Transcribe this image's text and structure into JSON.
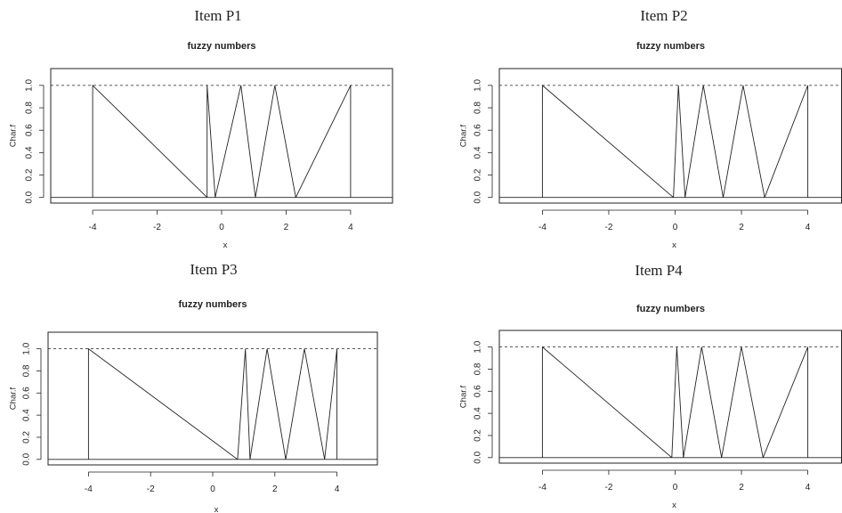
{
  "chart_data": [
    {
      "type": "line",
      "heading": "Item P1",
      "title": "fuzzy numbers",
      "xlabel": "x",
      "ylabel": "Char.f",
      "xlim": [
        -5.3,
        5.3
      ],
      "ylim": [
        -0.05,
        1.15
      ],
      "xticks": [
        -4,
        -2,
        0,
        2,
        4
      ],
      "yticks": [
        0.0,
        0.2,
        0.4,
        0.6,
        0.8,
        1.0
      ],
      "reference_lines": [
        {
          "y": 1.0,
          "style": "dashed"
        },
        {
          "y": 0.0,
          "style": "solid"
        }
      ],
      "series": [
        {
          "x": [
            -4,
            -4,
            -0.45,
            -0.45
          ],
          "y": [
            0,
            1,
            0,
            0
          ]
        },
        {
          "x": [
            -0.45,
            -0.45,
            -0.2,
            -0.2
          ],
          "y": [
            0,
            1,
            0,
            0
          ]
        },
        {
          "x": [
            -0.2,
            0.6,
            1.05
          ],
          "y": [
            0,
            1,
            0
          ]
        },
        {
          "x": [
            1.05,
            1.65,
            2.3
          ],
          "y": [
            0,
            1,
            0
          ]
        },
        {
          "x": [
            2.3,
            4,
            4
          ],
          "y": [
            0,
            1,
            0
          ]
        }
      ]
    },
    {
      "type": "line",
      "heading": "Item P2",
      "title": "fuzzy numbers",
      "xlabel": "x",
      "ylabel": "Char.f",
      "xlim": [
        -5.3,
        5.3
      ],
      "ylim": [
        -0.05,
        1.15
      ],
      "xticks": [
        -4,
        -2,
        0,
        2,
        4
      ],
      "yticks": [
        0.0,
        0.2,
        0.4,
        0.6,
        0.8,
        1.0
      ],
      "reference_lines": [
        {
          "y": 1.0,
          "style": "dashed"
        },
        {
          "y": 0.0,
          "style": "solid"
        }
      ],
      "series": [
        {
          "x": [
            -4,
            -4,
            -0.05,
            -0.05
          ],
          "y": [
            0,
            1,
            0,
            0
          ]
        },
        {
          "x": [
            -0.05,
            0.1,
            0.3
          ],
          "y": [
            0,
            1,
            0
          ]
        },
        {
          "x": [
            0.3,
            0.85,
            1.45
          ],
          "y": [
            0,
            1,
            0
          ]
        },
        {
          "x": [
            1.45,
            2.05,
            2.7
          ],
          "y": [
            0,
            1,
            0
          ]
        },
        {
          "x": [
            2.7,
            4,
            4
          ],
          "y": [
            0,
            1,
            0
          ]
        }
      ]
    },
    {
      "type": "line",
      "heading": "Item P3",
      "title": "fuzzy numbers",
      "xlabel": "x",
      "ylabel": "Char.f",
      "xlim": [
        -5.3,
        5.3
      ],
      "ylim": [
        -0.05,
        1.15
      ],
      "xticks": [
        -4,
        -2,
        0,
        2,
        4
      ],
      "yticks": [
        0.0,
        0.2,
        0.4,
        0.6,
        0.8,
        1.0
      ],
      "reference_lines": [
        {
          "y": 1.0,
          "style": "dashed"
        },
        {
          "y": 0.0,
          "style": "solid"
        }
      ],
      "series": [
        {
          "x": [
            -4,
            -4,
            0.8
          ],
          "y": [
            0,
            1,
            0
          ]
        },
        {
          "x": [
            0.8,
            1.05,
            1.2
          ],
          "y": [
            0,
            1,
            0
          ]
        },
        {
          "x": [
            1.2,
            1.75,
            2.35
          ],
          "y": [
            0,
            1,
            0
          ]
        },
        {
          "x": [
            2.35,
            2.95,
            3.6
          ],
          "y": [
            0,
            1,
            0
          ]
        },
        {
          "x": [
            3.6,
            4,
            4
          ],
          "y": [
            0,
            1,
            0
          ]
        }
      ]
    },
    {
      "type": "line",
      "heading": "Item P4",
      "title": "fuzzy numbers",
      "xlabel": "x",
      "ylabel": "Char.f",
      "xlim": [
        -5.3,
        5.3
      ],
      "ylim": [
        -0.05,
        1.15
      ],
      "xticks": [
        -4,
        -2,
        0,
        2,
        4
      ],
      "yticks": [
        0.0,
        0.2,
        0.4,
        0.6,
        0.8,
        1.0
      ],
      "reference_lines": [
        {
          "y": 1.0,
          "style": "dashed"
        },
        {
          "y": 0.0,
          "style": "solid"
        }
      ],
      "series": [
        {
          "x": [
            -4,
            -4,
            -0.1
          ],
          "y": [
            0,
            1,
            0
          ]
        },
        {
          "x": [
            -0.1,
            0.05,
            0.25
          ],
          "y": [
            0,
            1,
            0
          ]
        },
        {
          "x": [
            0.25,
            0.8,
            1.4
          ],
          "y": [
            0,
            1,
            0
          ]
        },
        {
          "x": [
            1.4,
            2.0,
            2.65
          ],
          "y": [
            0,
            1,
            0
          ]
        },
        {
          "x": [
            2.65,
            4,
            4
          ],
          "y": [
            0,
            1,
            0
          ]
        }
      ]
    }
  ]
}
